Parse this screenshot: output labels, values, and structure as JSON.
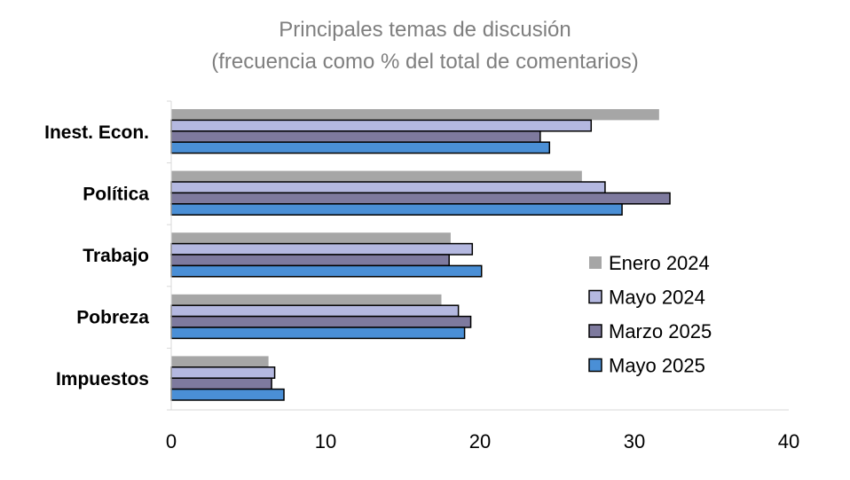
{
  "chart_data": {
    "type": "bar",
    "orientation": "horizontal",
    "title": "Principales temas de discusión",
    "subtitle": "(frecuencia como % del total de comentarios)",
    "categories": [
      "Inest. Econ.",
      "Política",
      "Trabajo",
      "Pobreza",
      "Impuestos"
    ],
    "series": [
      {
        "name": "Enero 2024",
        "color": "#a6a6a6",
        "values": [
          31.6,
          26.6,
          18.1,
          17.5,
          6.3
        ]
      },
      {
        "name": "Mayo 2024",
        "color": "#b4b8e0",
        "values": [
          27.2,
          28.1,
          19.5,
          18.6,
          6.7
        ]
      },
      {
        "name": "Marzo 2025",
        "color": "#7e7a9e",
        "values": [
          23.9,
          32.3,
          18.0,
          19.4,
          6.5
        ]
      },
      {
        "name": "Mayo 2025",
        "color": "#4a8fd6",
        "values": [
          24.5,
          29.2,
          20.1,
          19.0,
          7.3
        ]
      }
    ],
    "xlim": [
      0,
      40
    ],
    "xticks": [
      0,
      10,
      20,
      30,
      40
    ],
    "xtick_labels": [
      "0",
      "10",
      "20",
      "30",
      "40"
    ],
    "grid": false,
    "legend_position": "right"
  }
}
